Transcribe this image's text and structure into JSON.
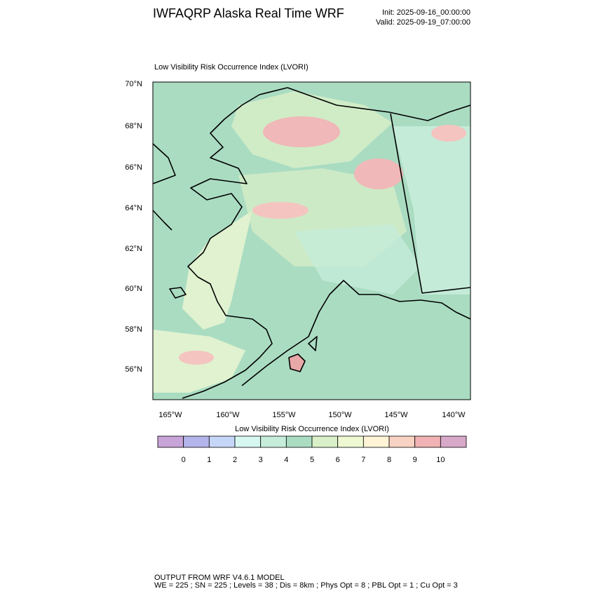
{
  "header": {
    "title": "IWFAQRP Alaska Real Time WRF",
    "init": "Init: 2025-09-16_00:00:00",
    "valid": "Valid: 2025-09-19_07:00:00"
  },
  "map": {
    "title": "Low Visibility Risk Occurrence Index   (LVORI)",
    "lat_labels": [
      "70°N",
      "68°N",
      "66°N",
      "64°N",
      "62°N",
      "60°N",
      "58°N",
      "56°N"
    ],
    "lon_labels": [
      "165°W",
      "160°W",
      "155°W",
      "150°W",
      "145°W",
      "140°W"
    ]
  },
  "colorbar": {
    "title": "Low Visibility Risk Occurrence Index  (LVORI)",
    "colors": [
      "#c8a4d8",
      "#b4b4ec",
      "#c6d6f8",
      "#d6f8f0",
      "#c6ecda",
      "#aadcc2",
      "#daf0c8",
      "#eef8d2",
      "#fff4d6",
      "#f8d2c2",
      "#f0b2b2",
      "#d8a8c8"
    ],
    "labels": [
      0,
      1,
      2,
      3,
      4,
      5,
      6,
      7,
      8,
      9,
      10
    ]
  },
  "footer": {
    "line1": "OUTPUT FROM WRF V4.6.1 MODEL",
    "line2": "WE = 225 ; SN = 225 ; Levels = 38 ; Dis = 8km ; Phys Opt = 8 ; PBL Opt = 1 ; Cu Opt = 3"
  }
}
